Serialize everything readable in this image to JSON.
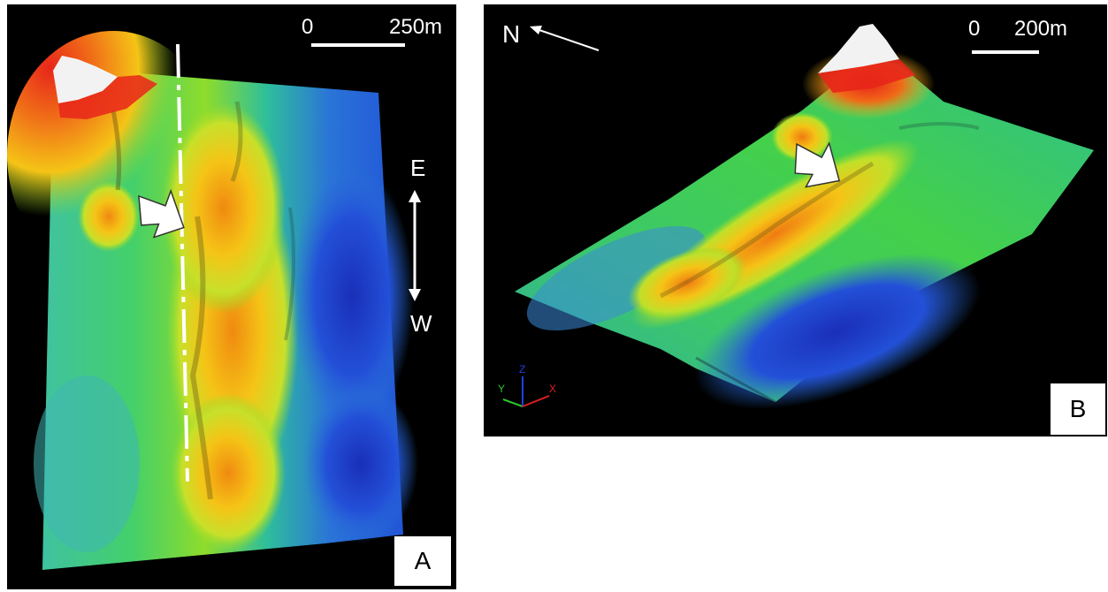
{
  "panel_a": {
    "label": "A",
    "scale_start": "0",
    "scale_end": "250m",
    "direction_top": "E",
    "direction_bottom": "W",
    "icons": [
      "white-arrow-icon",
      "double-arrow-icon"
    ]
  },
  "panel_b": {
    "label": "B",
    "scale_start": "0",
    "scale_end": "200m",
    "north": "N",
    "axis_labels": {
      "x": "X",
      "y": "Y",
      "z": "Z"
    },
    "icons": [
      "white-arrow-icon",
      "north-arrow-icon",
      "axis-triad-icon"
    ]
  },
  "colors": {
    "background": "#000000",
    "low": "#1f3fd6",
    "mid": "#39d24a",
    "high": "#f5e21a",
    "peak": "#e82a16",
    "summit": "#f2f2f2"
  }
}
